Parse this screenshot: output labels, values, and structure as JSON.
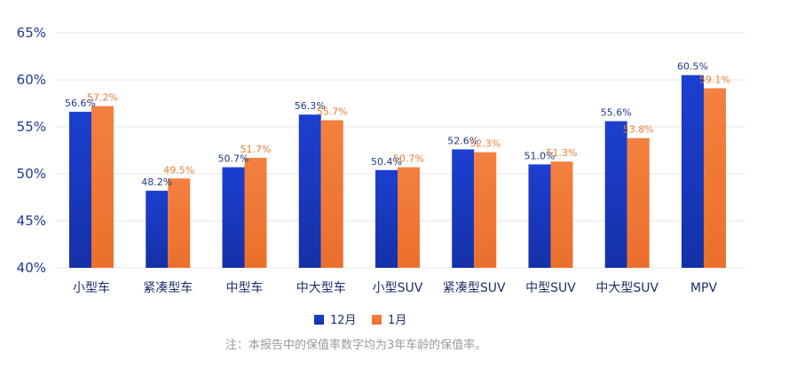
{
  "chart_data": {
    "type": "bar",
    "categories": [
      "小型车",
      "紧凑型车",
      "中型车",
      "中大型车",
      "小型SUV",
      "紧凑型SUV",
      "中型SUV",
      "中大型SUV",
      "MPV"
    ],
    "series": [
      {
        "name": "12月",
        "color": "#1a3fc8",
        "values": [
          56.6,
          48.2,
          50.7,
          56.3,
          50.4,
          52.6,
          51.0,
          55.6,
          60.5
        ],
        "labels": [
          "56.6%",
          "48.2%",
          "50.7%",
          "56.3%",
          "50.4%",
          "52.6%",
          "51.0%",
          "55.6%",
          "60.5%"
        ]
      },
      {
        "name": "1月",
        "color": "#f07a3a",
        "values": [
          57.2,
          49.5,
          51.7,
          55.7,
          50.7,
          52.3,
          51.3,
          53.8,
          59.1
        ],
        "labels": [
          "57.2%",
          "49.5%",
          "51.7%",
          "55.7%",
          "50.7%",
          "52.3%",
          "51.3%",
          "53.8%",
          "59.1%"
        ]
      }
    ],
    "yticks": [
      40,
      45,
      50,
      55,
      60,
      65
    ],
    "ytick_labels": [
      "40%",
      "45%",
      "50%",
      "55%",
      "60%",
      "65%"
    ],
    "ylim": [
      40,
      65
    ],
    "grid": true,
    "legend_position": "bottom-center",
    "title": "",
    "xlabel": "",
    "ylabel": ""
  },
  "legend": {
    "items": [
      "12月",
      "1月"
    ]
  },
  "footnote": "注：本报告中的保值率数字均为3年车龄的保值率。"
}
